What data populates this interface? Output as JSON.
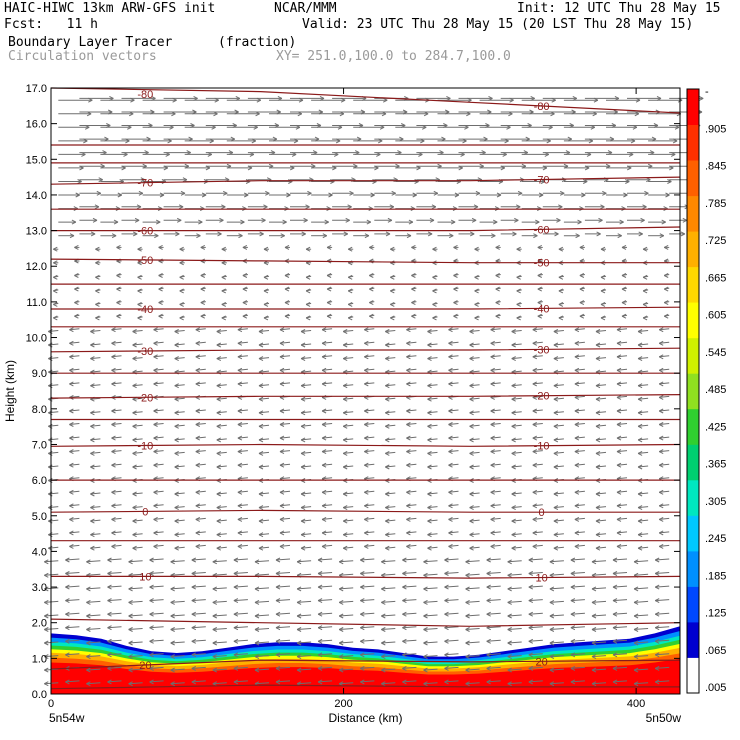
{
  "header": {
    "title": "HAIC-HIWC 13km ARW-GFS init",
    "org": "NCAR/MMM",
    "init": "Init: 12 UTC Thu 28 May 15",
    "fcst": "Fcst:   11 h",
    "valid": "Valid: 23 UTC Thu 28 May 15 (20 LST Thu 28 May 15)",
    "field": "Boundary Layer Tracer",
    "units": "(fraction)",
    "field2": "Circulation vectors",
    "xy": "XY= 251.0,100.0 to 284.7,100.0"
  },
  "colors": {
    "contour": "#8b1a1a",
    "vector": "#6e6e6e",
    "colorbar": [
      "#ffffff",
      "#0000d0",
      "#0048ff",
      "#0090ff",
      "#00c8ff",
      "#00e8c0",
      "#00d070",
      "#30d030",
      "#90e020",
      "#d0f000",
      "#ffff00",
      "#ffd800",
      "#ffb000",
      "#ff8800",
      "#ff6000",
      "#ff3000",
      "#ff0000"
    ]
  },
  "chart_data": {
    "type": "heatmap",
    "xlabel": "Distance (km)",
    "ylabel": "Height (km)",
    "xlim": [
      0,
      430
    ],
    "ylim": [
      0.0,
      17.0
    ],
    "x_ticks": [
      "0",
      "200",
      "400"
    ],
    "y_ticks": [
      "0.0",
      "1.0",
      "2.0",
      "3.0",
      "4.0",
      "5.0",
      "6.0",
      "7.0",
      "8.0",
      "9.0",
      "10.0",
      "11.0",
      "12.0",
      "13.0",
      "14.0",
      "15.0",
      "16.0",
      "17.0"
    ],
    "x_end_labels": [
      "5n54w",
      "5n50w"
    ],
    "colorbar_labels": [
      "-",
      ".905",
      ".845",
      ".785",
      ".725",
      ".665",
      ".605",
      ".545",
      ".485",
      ".425",
      ".365",
      ".305",
      ".245",
      ".185",
      ".125",
      ".065",
      ".005"
    ],
    "tracer_top_km": [
      1.7,
      1.65,
      1.55,
      1.35,
      1.2,
      1.15,
      1.2,
      1.3,
      1.4,
      1.45,
      1.45,
      1.4,
      1.3,
      1.25,
      1.15,
      1.05,
      1.05,
      1.1,
      1.2,
      1.3,
      1.4,
      1.45,
      1.5,
      1.55,
      1.7,
      1.9
    ],
    "temperature_contours": [
      {
        "label": "20",
        "values_km": [
          0.7,
          0.95,
          0.9,
          0.95
        ]
      },
      {
        "label": "10",
        "values_km": [
          3.3,
          3.3,
          3.25,
          3.3
        ]
      },
      {
        "label": "0",
        "values_km": [
          5.1,
          5.15,
          5.1,
          5.1
        ]
      },
      {
        "label": "-10",
        "values_km": [
          6.95,
          7.0,
          6.95,
          7.0
        ]
      },
      {
        "label": "-20",
        "values_km": [
          8.3,
          8.35,
          8.35,
          8.4
        ]
      },
      {
        "label": "-30",
        "values_km": [
          9.6,
          9.65,
          9.65,
          9.7
        ]
      },
      {
        "label": "-40",
        "values_km": [
          10.8,
          10.8,
          10.8,
          10.85
        ]
      },
      {
        "label": "-50",
        "values_km": [
          12.2,
          12.15,
          12.1,
          12.1
        ]
      },
      {
        "label": "-60",
        "values_km": [
          13.0,
          13.0,
          13.0,
          13.1
        ]
      },
      {
        "label": "-70",
        "values_km": [
          14.3,
          14.4,
          14.4,
          14.5
        ]
      },
      {
        "label": "-80",
        "values_km": [
          17.0,
          16.9,
          16.6,
          16.3
        ]
      },
      {
        "label": "",
        "values_km": [
          14.9,
          14.9,
          14.9,
          14.9
        ]
      },
      {
        "label": "",
        "values_km": [
          15.4,
          15.4,
          15.4,
          15.4
        ]
      },
      {
        "label": "",
        "values_km": [
          13.6,
          13.6,
          13.6,
          13.6
        ]
      },
      {
        "label": "",
        "values_km": [
          11.5,
          11.5,
          11.5,
          11.5
        ]
      },
      {
        "label": "",
        "values_km": [
          10.3,
          10.3,
          10.3,
          10.3
        ]
      },
      {
        "label": "",
        "values_km": [
          9.0,
          9.0,
          9.0,
          9.0
        ]
      },
      {
        "label": "",
        "values_km": [
          7.7,
          7.7,
          7.7,
          7.7
        ]
      },
      {
        "label": "",
        "values_km": [
          6.0,
          6.0,
          6.0,
          6.0
        ]
      },
      {
        "label": "",
        "values_km": [
          4.3,
          4.3,
          4.3,
          4.3
        ]
      },
      {
        "label": "",
        "values_km": [
          2.1,
          2.0,
          1.9,
          2.0
        ]
      },
      {
        "label": "",
        "values_km": [
          0.15,
          0.25,
          0.2,
          0.2
        ]
      }
    ],
    "circulation_vectors": {
      "note_direction": "westerly aloft above ~12.5 km, easterly below",
      "reversal_height_km": 12.5
    }
  }
}
